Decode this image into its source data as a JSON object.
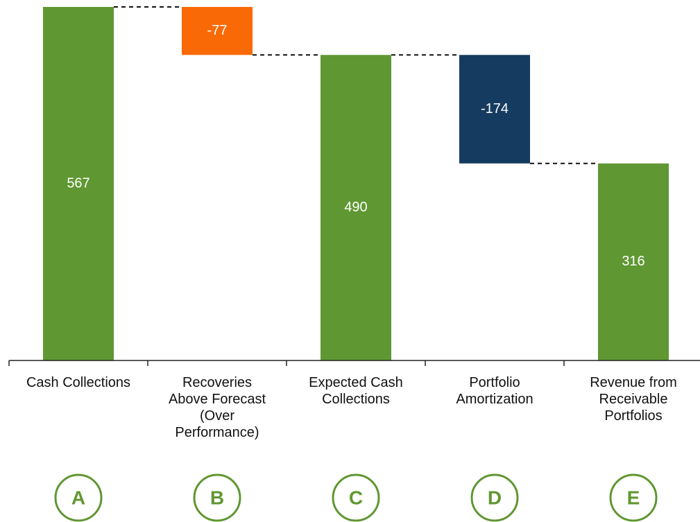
{
  "chart_data": {
    "type": "waterfall",
    "categories": [
      "Cash Collections",
      "Recoveries Above Forecast (Over Performance)",
      "Expected Cash Collections",
      "Portfolio Amortization",
      "Revenue from Receivable Portfolios"
    ],
    "values": [
      567,
      -77,
      490,
      -174,
      316
    ],
    "colors": [
      "#5f9732",
      "#f96a06",
      "#5f9732",
      "#163b60",
      "#5f9732"
    ],
    "letters": [
      "A",
      "B",
      "C",
      "D",
      "E"
    ]
  }
}
